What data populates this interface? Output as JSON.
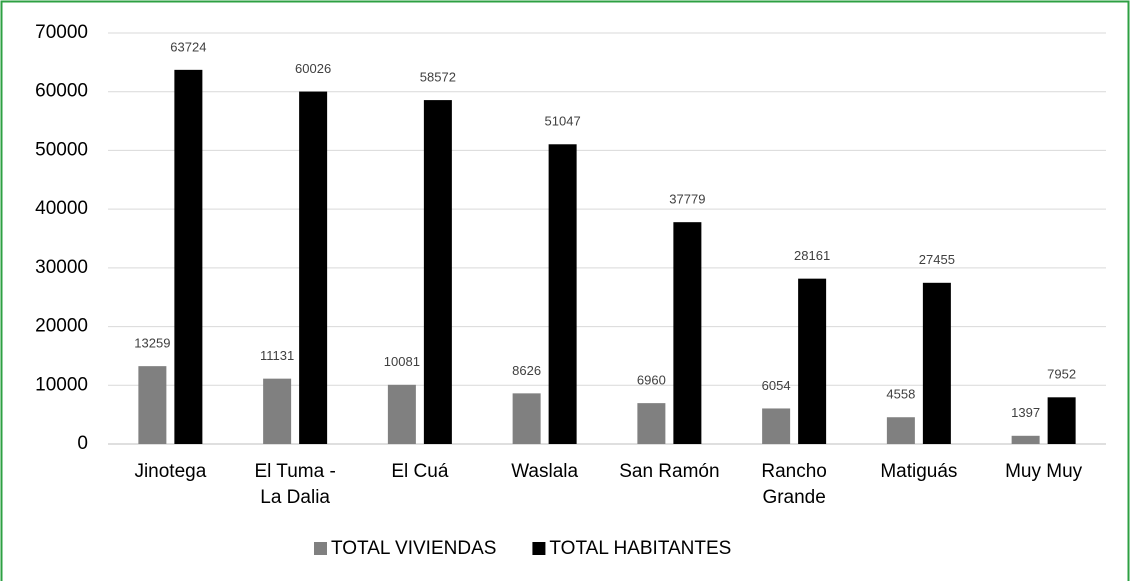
{
  "chart_data": {
    "type": "bar",
    "categories": [
      "Jinotega",
      "El Tuma - La Dalia",
      "El Cuá",
      "Waslala",
      "San Ramón",
      "Rancho Grande",
      "Matiguás",
      "Muy Muy"
    ],
    "series": [
      {
        "name": "TOTAL VIVIENDAS",
        "color": "#808080",
        "values": [
          13259,
          11131,
          10081,
          8626,
          6960,
          6054,
          4558,
          1397
        ]
      },
      {
        "name": "TOTAL HABITANTES",
        "color": "#000000",
        "values": [
          63724,
          60026,
          58572,
          51047,
          37779,
          28161,
          27455,
          7952
        ]
      }
    ],
    "ylim": [
      0,
      70000
    ],
    "yticks": [
      0,
      10000,
      20000,
      30000,
      40000,
      50000,
      60000,
      70000
    ],
    "grid": true,
    "legend": "bottom"
  }
}
